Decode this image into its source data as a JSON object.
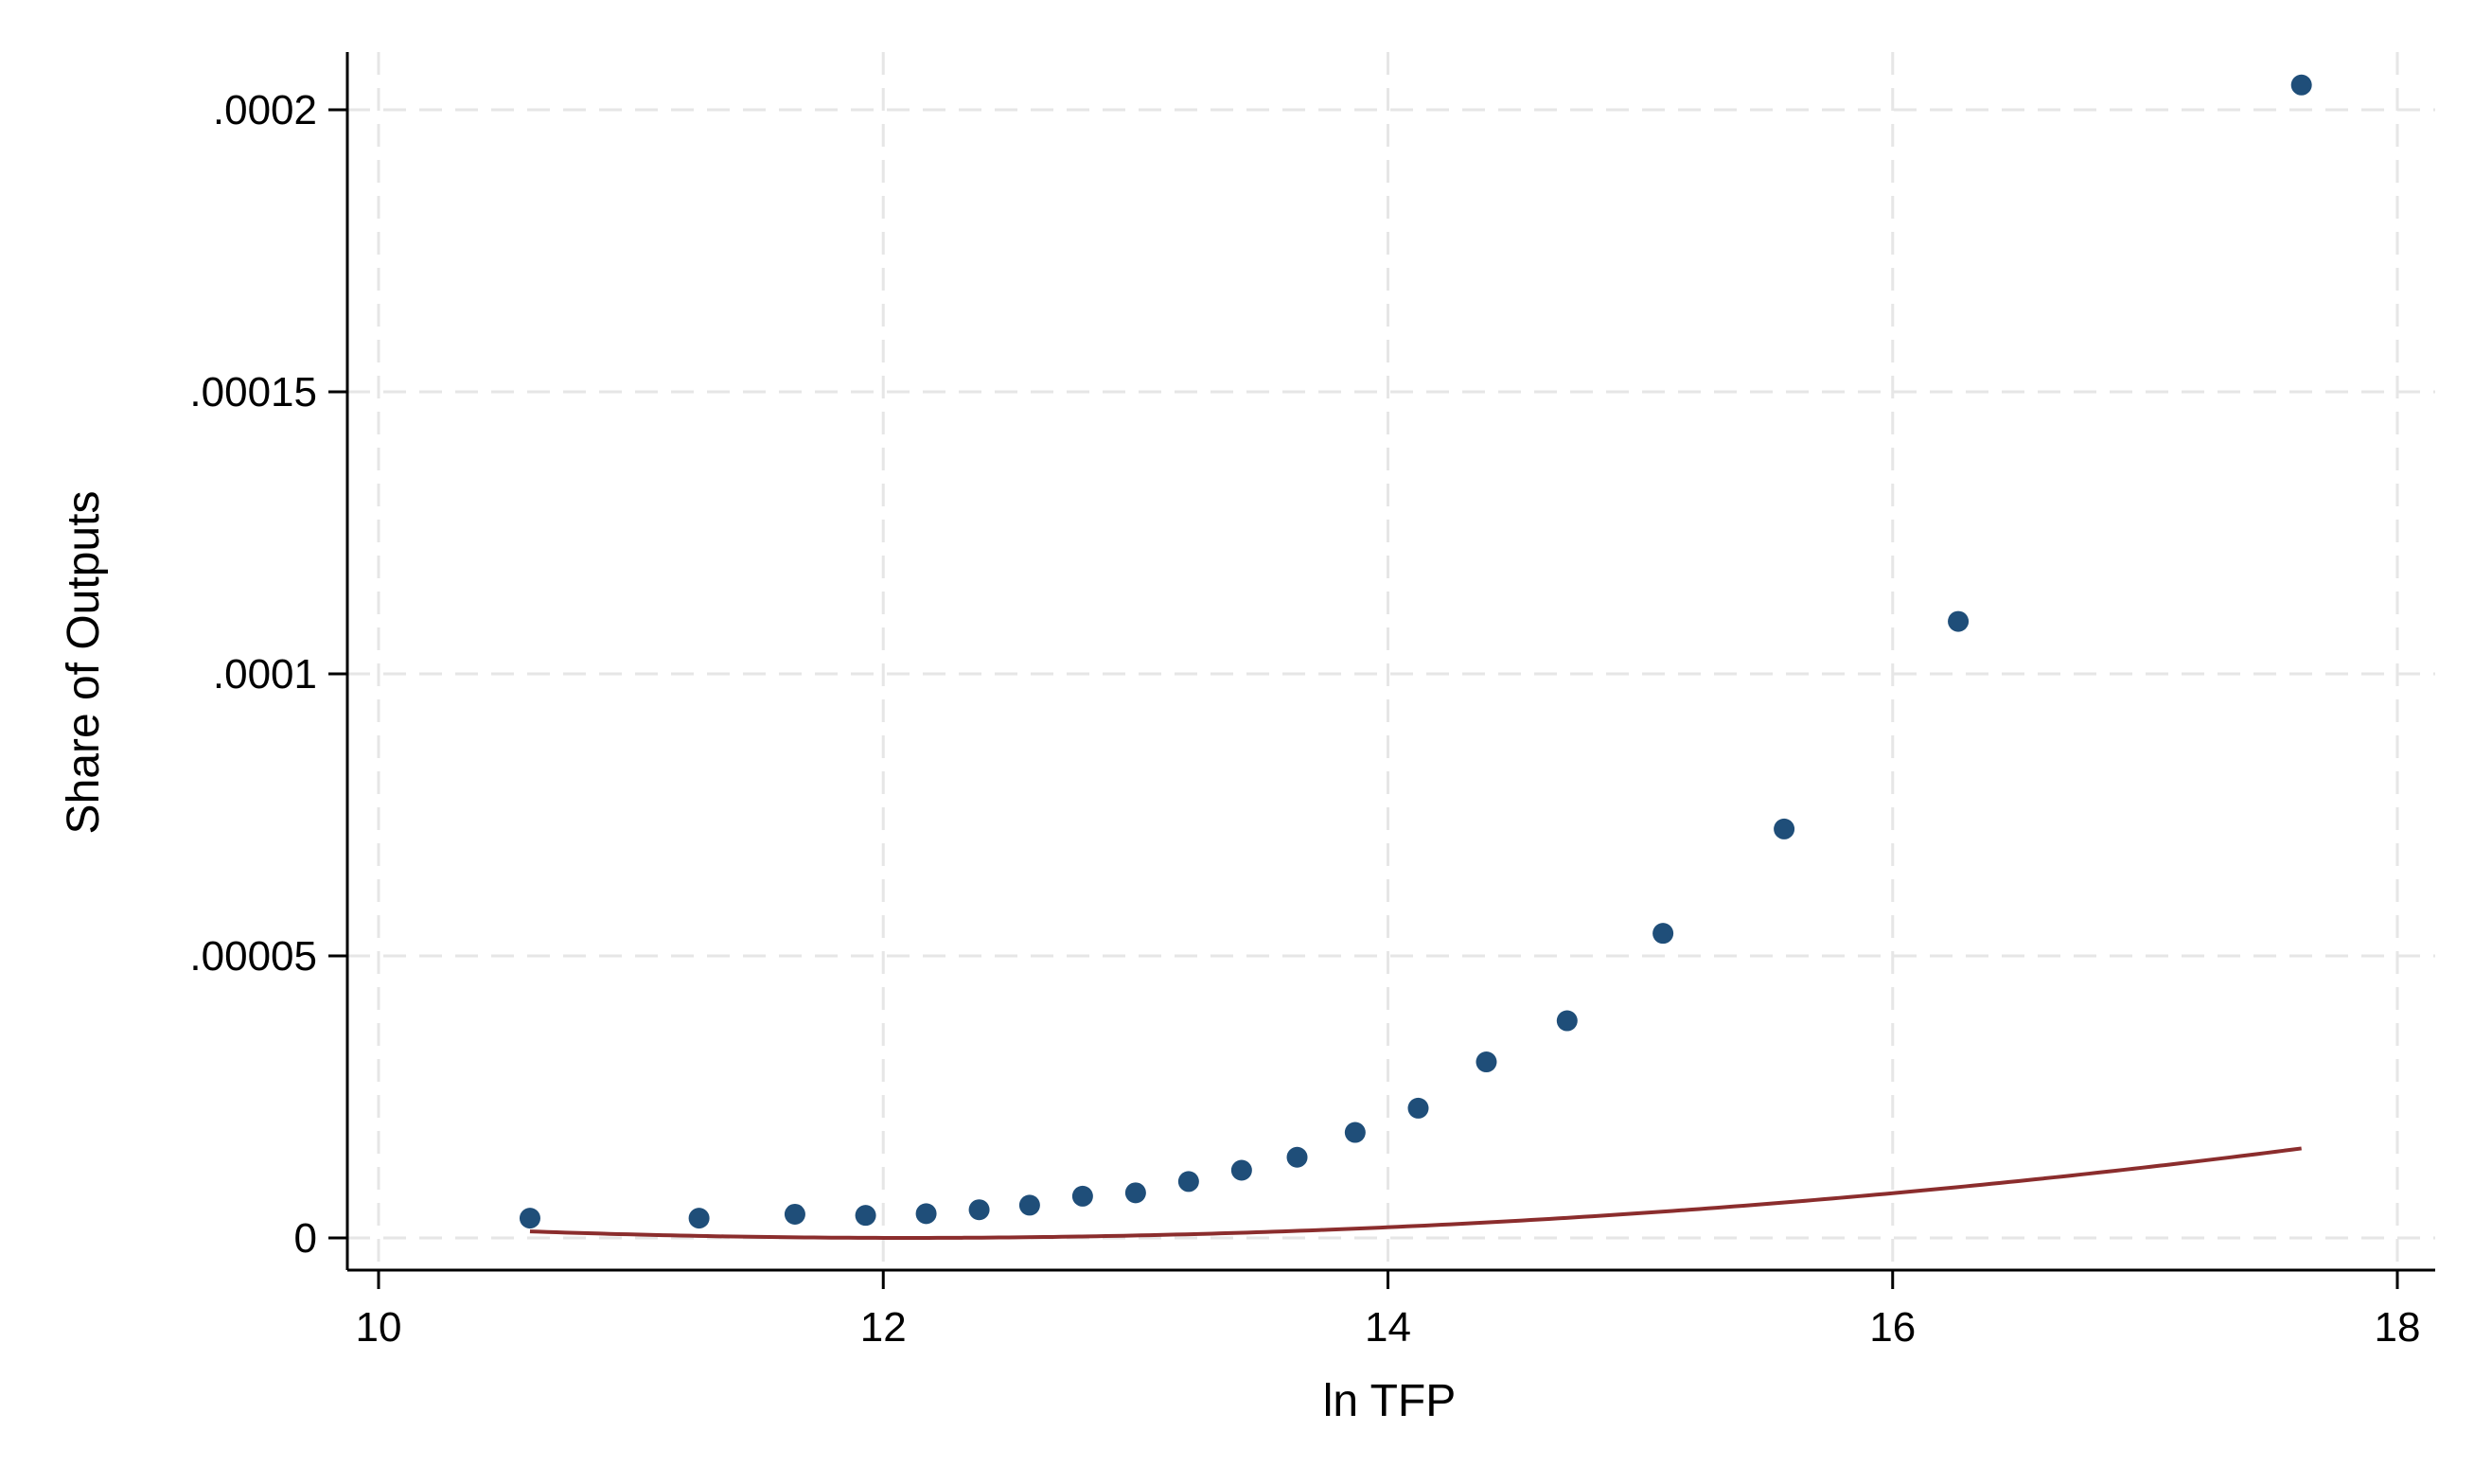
{
  "chart_data": {
    "type": "scatter",
    "xlabel": "ln TFP",
    "ylabel": "Share of Outputs",
    "xlim": [
      10,
      18
    ],
    "ylim": [
      0,
      0.0002
    ],
    "x_ticks": [
      10,
      12,
      14,
      16,
      18
    ],
    "x_tick_labels": [
      "10",
      "12",
      "14",
      "16",
      "18"
    ],
    "y_ticks": [
      0,
      5e-05,
      0.0001,
      0.00015,
      0.0002
    ],
    "y_tick_labels": [
      "0",
      ".00005",
      ".0001",
      ".00015",
      ".0002"
    ],
    "grid": true,
    "series": [
      {
        "type": "scatter",
        "color": "#1f4e79",
        "points": [
          [
            10.6,
            3.5e-06
          ],
          [
            11.27,
            3.5e-06
          ],
          [
            11.65,
            4.2e-06
          ],
          [
            11.93,
            4e-06
          ],
          [
            12.17,
            4.3e-06
          ],
          [
            12.38,
            5e-06
          ],
          [
            12.58,
            5.8e-06
          ],
          [
            12.79,
            7.4e-06
          ],
          [
            13.0,
            8e-06
          ],
          [
            13.21,
            1e-05
          ],
          [
            13.42,
            1.2e-05
          ],
          [
            13.64,
            1.43e-05
          ],
          [
            13.87,
            1.87e-05
          ],
          [
            14.12,
            2.3e-05
          ],
          [
            14.39,
            3.12e-05
          ],
          [
            14.71,
            3.85e-05
          ],
          [
            15.09,
            5.4e-05
          ],
          [
            15.57,
            7.25e-05
          ],
          [
            16.26,
            0.0001093
          ],
          [
            17.62,
            0.0002044
          ]
        ]
      },
      {
        "type": "line",
        "color": "#8b2d2d",
        "fit": "quadratic",
        "x_range": [
          10.6,
          17.62
        ],
        "quadratic_coefficients": [
          7.5922e-05,
          -1.2556e-05,
          5.1916e-07
        ]
      }
    ]
  }
}
